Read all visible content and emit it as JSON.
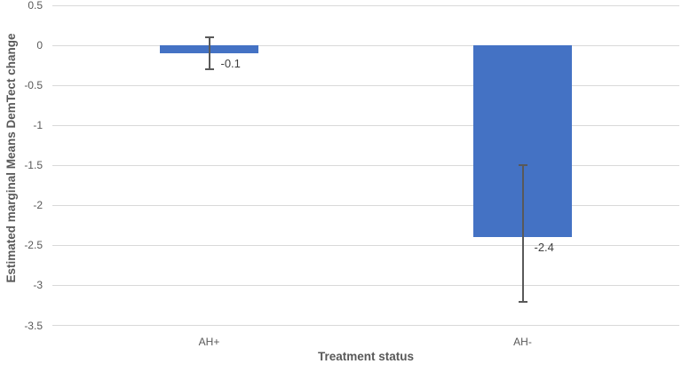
{
  "chart_data": {
    "type": "bar",
    "title": "",
    "xlabel": "Treatment status",
    "ylabel": "Estimated marginal Means DemTect change",
    "categories": [
      "AH+",
      "AH-"
    ],
    "values": [
      -0.1,
      -2.4
    ],
    "data_labels": [
      "-0.1",
      "-2.4"
    ],
    "error_bars": [
      {
        "upper": 0.1,
        "lower": -0.3
      },
      {
        "upper": -1.5,
        "lower": -3.2
      }
    ],
    "ylim": [
      -3.5,
      0.5
    ],
    "ytick_labels": [
      "0.5",
      "0",
      "-0.5",
      "-1",
      "-1.5",
      "-2",
      "-2.5",
      "-3",
      "-3.5"
    ],
    "grid": true,
    "legend": "none",
    "bar_color": "#4472C4",
    "error_bar_color": "#595959",
    "gridline_color": "#d9d9d9",
    "tick_label_color": "#595959",
    "axis_title_color": "#595959",
    "data_label_color": "#404040"
  }
}
